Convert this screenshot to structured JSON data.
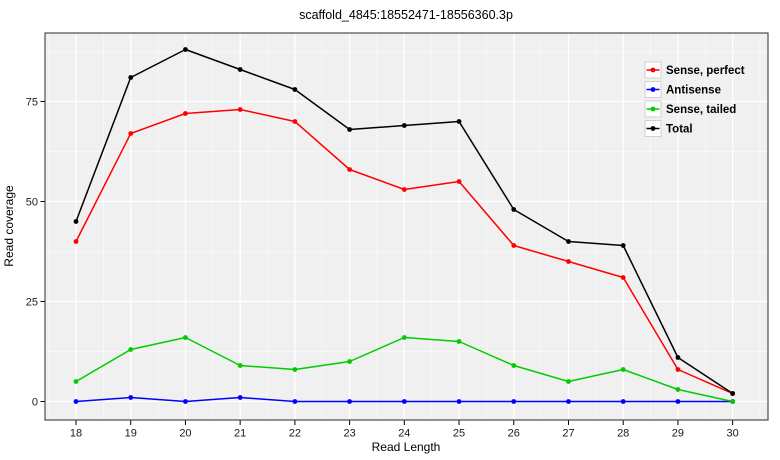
{
  "chart_data": {
    "type": "line",
    "title": "scaffold_4845:18552471-18556360.3p",
    "xlabel": "Read Length",
    "ylabel": "Read coverage",
    "x": [
      18,
      19,
      20,
      21,
      22,
      23,
      24,
      25,
      26,
      27,
      28,
      29,
      30
    ],
    "yticks": [
      0,
      25,
      50,
      75
    ],
    "xlim": [
      17.43,
      30.65
    ],
    "ylim": [
      -4.6,
      92.1
    ],
    "grid": true,
    "legend_position": "inside-top-right",
    "panel_background": "#f0f0f0",
    "gridline_color": "#ffffff",
    "panel_border_color": "#4d4d4d",
    "series": [
      {
        "name": "Sense, perfect",
        "color": "#ff0000",
        "values": [
          40,
          67,
          72,
          73,
          70,
          58,
          53,
          55,
          39,
          35,
          31,
          8,
          2
        ]
      },
      {
        "name": "Antisense",
        "color": "#0000ff",
        "values": [
          0,
          1,
          0,
          1,
          0,
          0,
          0,
          0,
          0,
          0,
          0,
          0,
          0
        ]
      },
      {
        "name": "Sense, tailed",
        "color": "#00cc00",
        "values": [
          5,
          13,
          16,
          9,
          8,
          10,
          16,
          15,
          9,
          5,
          8,
          3,
          0
        ]
      },
      {
        "name": "Total",
        "color": "#000000",
        "values": [
          45,
          81,
          88,
          83,
          78,
          68,
          69,
          70,
          48,
          40,
          39,
          11,
          2
        ]
      }
    ]
  }
}
